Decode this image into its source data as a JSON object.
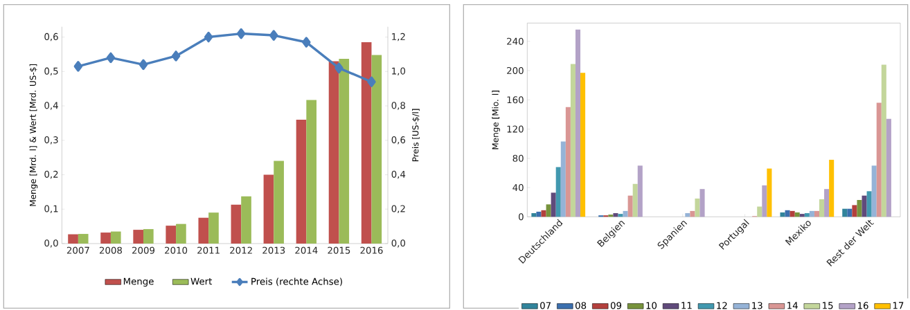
{
  "chart_data": [
    {
      "type": "bar",
      "ylabel": "Menge [Mrd. l] & Wert [Mrd. US-$]",
      "y2label": "Preis [US-$/l]",
      "categories": [
        "2007",
        "2008",
        "2009",
        "2010",
        "2011",
        "2012",
        "2013",
        "2014",
        "2015",
        "2016"
      ],
      "series": [
        {
          "name": "Menge",
          "color": "#c0504d",
          "values": [
            0.027,
            0.032,
            0.04,
            0.052,
            0.075,
            0.113,
            0.2,
            0.36,
            0.53,
            0.585
          ]
        },
        {
          "name": "Wert",
          "color": "#9bbb59",
          "values": [
            0.028,
            0.035,
            0.042,
            0.057,
            0.09,
            0.137,
            0.24,
            0.417,
            0.537,
            0.548
          ]
        },
        {
          "name": "Preis (rechte Achse)",
          "type": "line",
          "axis": "y2",
          "marker": "diamond",
          "color": "#4a7ebb",
          "values": [
            1.03,
            1.08,
            1.04,
            1.09,
            1.2,
            1.22,
            1.21,
            1.17,
            1.02,
            0.94
          ]
        }
      ],
      "ylim": [
        0,
        0.63
      ],
      "yticks": [
        {
          "value": 0,
          "label": "0,0"
        },
        {
          "value": 0.1,
          "label": "0,1"
        },
        {
          "value": 0.2,
          "label": "0,2"
        },
        {
          "value": 0.3,
          "label": "0,3"
        },
        {
          "value": 0.4,
          "label": "0,4"
        },
        {
          "value": 0.5,
          "label": "0,5"
        },
        {
          "value": 0.6,
          "label": "0,6"
        }
      ],
      "y2lim": [
        0,
        1.26
      ],
      "y2ticks": [
        {
          "value": 0,
          "label": "0,0"
        },
        {
          "value": 0.2,
          "label": "0,2"
        },
        {
          "value": 0.4,
          "label": "0,4"
        },
        {
          "value": 0.6,
          "label": "0,6"
        },
        {
          "value": 0.8,
          "label": "0,8"
        },
        {
          "value": 1.0,
          "label": "1,0"
        },
        {
          "value": 1.2,
          "label": "1,2"
        }
      ],
      "legend": "bottom"
    },
    {
      "type": "bar",
      "ylabel": "Menge [Mio. l]",
      "categories": [
        "Deutschland",
        "Belgien",
        "Spanien",
        "Portugal",
        "Mexiko",
        "Rest der Welt"
      ],
      "series": [
        {
          "name": "07",
          "color": "#31849b",
          "values": [
            5,
            null,
            null,
            null,
            6,
            11
          ]
        },
        {
          "name": "08",
          "color": "#3b6fae",
          "values": [
            7,
            2,
            null,
            null,
            9,
            11
          ]
        },
        {
          "name": "09",
          "color": "#b3403d",
          "values": [
            9,
            2,
            null,
            null,
            8,
            16
          ]
        },
        {
          "name": "10",
          "color": "#77933c",
          "values": [
            17,
            3,
            null,
            null,
            6,
            23
          ]
        },
        {
          "name": "11",
          "color": "#604a7b",
          "values": [
            33,
            5,
            null,
            null,
            4,
            29
          ]
        },
        {
          "name": "12",
          "color": "#4198af",
          "values": [
            68,
            4,
            null,
            null,
            5,
            35
          ]
        },
        {
          "name": "13",
          "color": "#95b3d7",
          "values": [
            103,
            8,
            5,
            null,
            8,
            70
          ]
        },
        {
          "name": "14",
          "color": "#d99694",
          "values": [
            150,
            29,
            8,
            1,
            8,
            156
          ]
        },
        {
          "name": "15",
          "color": "#c3d69b",
          "values": [
            209,
            45,
            25,
            14,
            24,
            208
          ]
        },
        {
          "name": "16",
          "color": "#b3a2c7",
          "values": [
            256,
            70,
            38,
            43,
            38,
            134
          ]
        },
        {
          "name": "17",
          "color": "#ffc000",
          "values": [
            197,
            null,
            null,
            66,
            78,
            null
          ]
        }
      ],
      "ylim": [
        0,
        265
      ],
      "yticks": [
        0,
        40,
        80,
        120,
        160,
        200,
        240
      ],
      "legend": "bottom"
    }
  ]
}
